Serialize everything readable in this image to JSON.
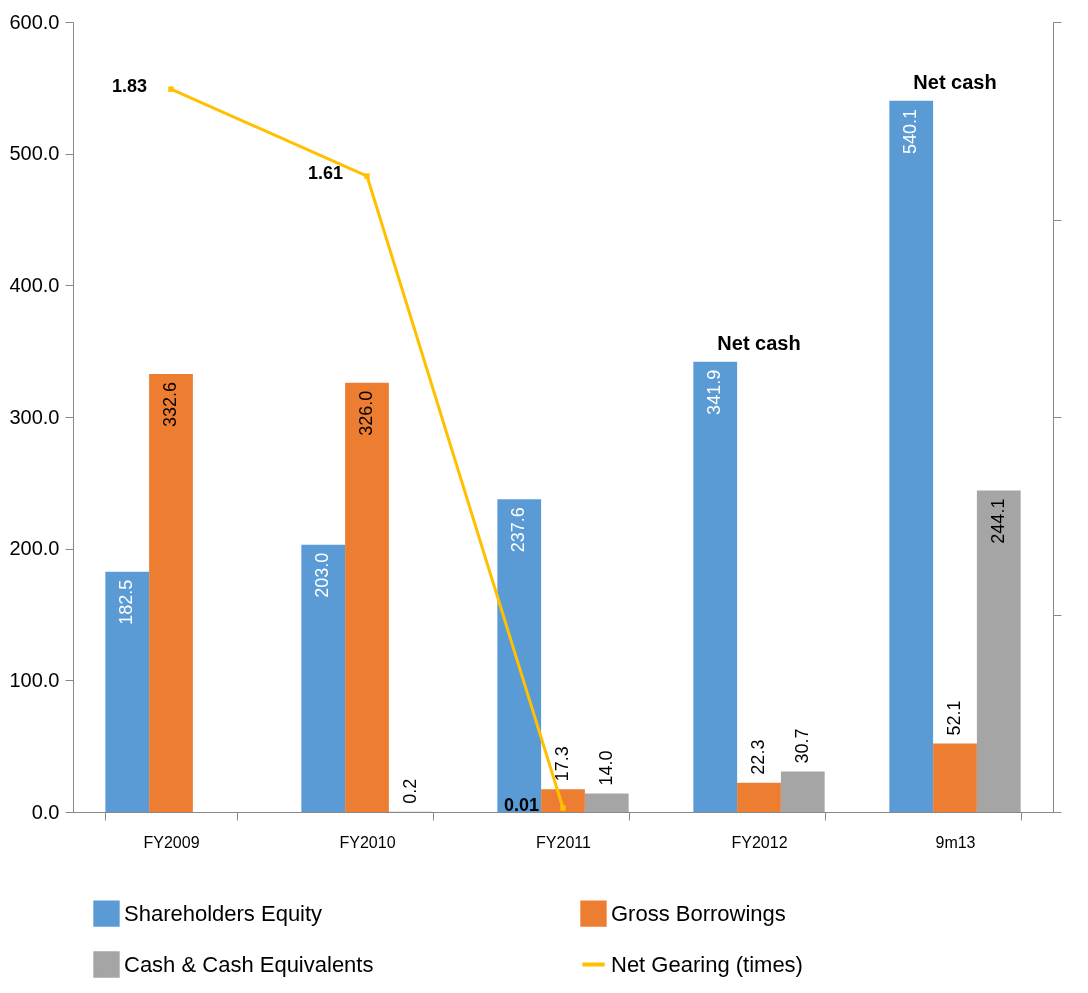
{
  "chart_data": {
    "type": "bar",
    "categories": [
      "FY2009",
      "FY2010",
      "FY2011",
      "FY2012",
      "9m13"
    ],
    "series": [
      {
        "name": "Shareholders Equity",
        "color": "#5b9bd5",
        "values": [
          182.5,
          203.0,
          237.6,
          341.9,
          540.1
        ],
        "value_labels": [
          "182.5",
          "203.0",
          "237.6",
          "341.9",
          "540.1"
        ]
      },
      {
        "name": "Gross Borrowings",
        "color": "#ed7d31",
        "values": [
          332.6,
          326.0,
          17.3,
          22.3,
          52.1
        ],
        "value_labels": [
          "332.6",
          "326.0",
          "17.3",
          "22.3",
          "52.1"
        ]
      },
      {
        "name": "Cash & Cash Equivalents",
        "color": "#a5a5a5",
        "values": [
          null,
          0.2,
          14.0,
          30.7,
          244.1
        ],
        "value_labels": [
          null,
          "0.2",
          "14.0",
          "30.7",
          "244.1"
        ]
      },
      {
        "name": "Net Gearing (times)",
        "type": "line",
        "axis": "y2",
        "color": "#ffc000",
        "values": [
          1.83,
          1.61,
          0.01,
          null,
          null
        ],
        "value_labels": [
          "1.83",
          "1.61",
          "0.01",
          null,
          null
        ]
      }
    ],
    "ylim": [
      0,
      600
    ],
    "yticks": [
      {
        "value": 0,
        "label": "0.0"
      },
      {
        "value": 100,
        "label": "100.0"
      },
      {
        "value": 200,
        "label": "200.0"
      },
      {
        "value": 300,
        "label": "300.0"
      },
      {
        "value": 400,
        "label": "400.0"
      },
      {
        "value": 500,
        "label": "500.0"
      },
      {
        "value": 600,
        "label": "600.0"
      }
    ],
    "y2lim": [
      0,
      2
    ],
    "y2ticks": [
      {
        "value": 0,
        "label": null
      },
      {
        "value": 0.5,
        "label": null
      },
      {
        "value": 1,
        "label": null
      },
      {
        "value": 1.5,
        "label": null
      },
      {
        "value": 2,
        "label": null
      }
    ],
    "tick_labels": "xy",
    "grid": false,
    "legend": "bottom",
    "marker": "square",
    "line_style": "solid",
    "annotations": [
      "Net cash",
      "Net cash"
    ]
  }
}
